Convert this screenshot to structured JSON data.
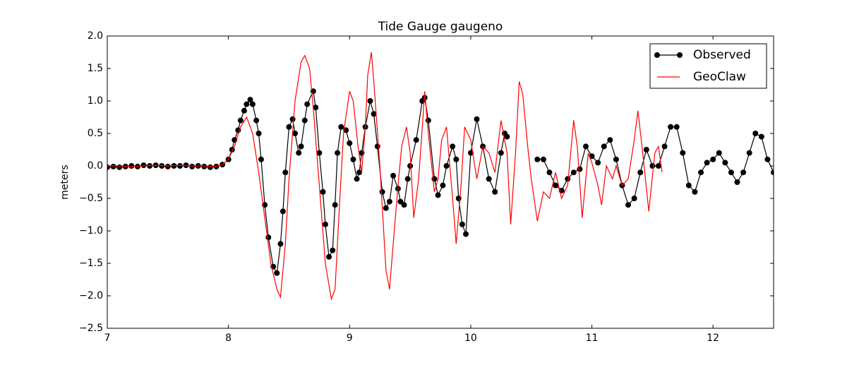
{
  "chart_data": {
    "type": "line",
    "title": "Tide Gauge gaugeno",
    "ylabel": "meters",
    "xlim": [
      7,
      12.5
    ],
    "xticks": [
      7,
      8,
      9,
      10,
      11,
      12
    ],
    "ylim": [
      -2.5,
      2.0
    ],
    "yticks": [
      {
        "value": -2.5,
        "label": "−2.5"
      },
      {
        "value": -2.0,
        "label": "−2.0"
      },
      {
        "value": -1.5,
        "label": "−1.5"
      },
      {
        "value": -1.0,
        "label": "−1.0"
      },
      {
        "value": -0.5,
        "label": "−0.5"
      },
      {
        "value": 0.0,
        "label": "0.0"
      },
      {
        "value": 0.5,
        "label": "0.5"
      },
      {
        "value": 1.0,
        "label": "1.0"
      },
      {
        "value": 1.5,
        "label": "1.5"
      },
      {
        "value": 2.0,
        "label": "2.0"
      }
    ],
    "legend": "upper right",
    "series": [
      {
        "name": "Observed",
        "color": "#000000",
        "markers": true,
        "x": [
          7.0,
          7.05,
          7.1,
          7.15,
          7.2,
          7.25,
          7.3,
          7.35,
          7.4,
          7.45,
          7.5,
          7.55,
          7.6,
          7.65,
          7.7,
          7.75,
          7.8,
          7.85,
          7.9,
          7.95,
          8.0,
          8.03,
          8.05,
          8.08,
          8.1,
          8.13,
          8.15,
          8.18,
          8.2,
          8.23,
          8.25,
          8.27,
          8.3,
          8.33,
          8.37,
          8.4,
          8.43,
          8.45,
          8.47,
          8.5,
          8.53,
          8.55,
          8.58,
          8.6,
          8.63,
          8.65,
          8.7,
          8.72,
          8.75,
          8.78,
          8.8,
          8.83,
          8.86,
          8.88,
          8.9,
          8.93,
          8.97,
          9.0,
          9.03,
          9.06,
          9.08,
          9.1,
          9.13,
          9.17,
          9.2,
          9.23,
          9.27,
          9.3,
          9.33,
          9.36,
          9.4,
          9.42,
          9.45,
          9.48,
          9.5,
          9.55,
          9.6,
          9.62,
          9.65,
          9.7,
          9.73,
          9.77,
          9.8,
          9.85,
          9.88,
          9.9,
          9.93,
          9.96,
          10.0,
          10.05,
          10.1,
          10.15,
          10.2,
          10.25,
          10.28,
          10.3,
          10.4,
          10.55,
          10.6,
          10.65,
          10.7,
          10.75,
          10.8,
          10.85,
          10.9,
          10.95,
          11.0,
          11.05,
          11.1,
          11.15,
          11.2,
          11.25,
          11.3,
          11.35,
          11.4,
          11.45,
          11.5,
          11.55,
          11.6,
          11.65,
          11.7,
          11.75,
          11.8,
          11.85,
          11.9,
          11.95,
          12.0,
          12.05,
          12.1,
          12.15,
          12.2,
          12.25,
          12.3,
          12.35,
          12.4,
          12.45,
          12.5
        ],
        "values": [
          -0.02,
          -0.01,
          -0.02,
          -0.01,
          0.0,
          -0.01,
          0.01,
          0.0,
          0.01,
          0.0,
          -0.01,
          0.0,
          0.0,
          0.01,
          -0.01,
          0.0,
          -0.01,
          -0.02,
          -0.01,
          0.02,
          0.1,
          0.25,
          0.4,
          0.55,
          0.7,
          0.85,
          0.95,
          1.02,
          0.95,
          0.7,
          0.5,
          0.1,
          -0.6,
          -1.1,
          -1.55,
          -1.65,
          -1.2,
          -0.7,
          -0.1,
          0.6,
          0.72,
          0.5,
          0.2,
          0.3,
          0.7,
          0.95,
          1.15,
          0.9,
          0.2,
          -0.4,
          -0.9,
          -1.4,
          -1.3,
          -0.6,
          0.2,
          0.6,
          0.55,
          0.35,
          0.1,
          -0.2,
          -0.1,
          0.2,
          0.6,
          1.0,
          0.8,
          0.3,
          -0.4,
          -0.65,
          -0.55,
          -0.15,
          -0.35,
          -0.55,
          -0.6,
          -0.2,
          0.0,
          0.4,
          1.0,
          1.05,
          0.7,
          -0.2,
          -0.45,
          -0.3,
          0.0,
          0.3,
          0.1,
          -0.5,
          -0.9,
          -1.05,
          0.2,
          0.72,
          0.3,
          -0.2,
          -0.4,
          0.2,
          0.5,
          0.45,
          null,
          0.1,
          0.1,
          -0.1,
          -0.3,
          -0.38,
          -0.2,
          -0.1,
          -0.05,
          0.3,
          0.15,
          0.05,
          0.3,
          0.4,
          0.1,
          -0.3,
          -0.6,
          -0.5,
          -0.1,
          0.25,
          0.0,
          0.0,
          0.3,
          0.6,
          0.6,
          0.2,
          -0.3,
          -0.4,
          -0.1,
          0.05,
          0.1,
          0.2,
          0.05,
          -0.1,
          -0.25,
          -0.1,
          0.2,
          0.5,
          0.45,
          0.1,
          -0.1
        ]
      },
      {
        "name": "GeoClaw",
        "color": "#ff0000",
        "markers": false,
        "x": [
          7.0,
          7.1,
          7.2,
          7.3,
          7.4,
          7.5,
          7.6,
          7.7,
          7.8,
          7.9,
          7.95,
          8.0,
          8.05,
          8.1,
          8.15,
          8.2,
          8.25,
          8.3,
          8.35,
          8.4,
          8.43,
          8.47,
          8.5,
          8.55,
          8.6,
          8.63,
          8.67,
          8.7,
          8.75,
          8.8,
          8.85,
          8.88,
          8.92,
          8.95,
          9.0,
          9.03,
          9.07,
          9.1,
          9.13,
          9.15,
          9.18,
          9.2,
          9.25,
          9.3,
          9.33,
          9.36,
          9.4,
          9.43,
          9.47,
          9.5,
          9.53,
          9.57,
          9.6,
          9.62,
          9.65,
          9.7,
          9.73,
          9.76,
          9.8,
          9.85,
          9.88,
          9.92,
          9.95,
          10.0,
          10.05,
          10.1,
          10.15,
          10.2,
          10.25,
          10.3,
          10.33,
          10.37,
          10.4,
          10.43,
          10.47,
          10.5,
          10.55,
          10.6,
          10.65,
          10.7,
          10.75,
          10.8,
          10.85,
          10.88,
          10.92,
          10.97,
          11.0,
          11.05,
          11.08,
          11.12,
          11.17,
          11.2,
          11.25,
          11.3,
          11.35,
          11.38,
          11.42,
          11.47,
          11.52,
          11.55,
          11.58
        ],
        "values": [
          0.0,
          0.0,
          -0.01,
          0.0,
          0.01,
          0.0,
          0.01,
          0.0,
          0.0,
          -0.01,
          0.02,
          0.1,
          0.3,
          0.6,
          0.75,
          0.5,
          -0.1,
          -0.8,
          -1.5,
          -1.9,
          -2.02,
          -1.2,
          -0.2,
          1.0,
          1.6,
          1.7,
          1.5,
          0.9,
          -0.3,
          -1.5,
          -2.05,
          -1.9,
          -0.5,
          0.5,
          1.15,
          1.0,
          0.3,
          -0.1,
          0.6,
          1.4,
          1.75,
          1.3,
          0.0,
          -1.6,
          -1.9,
          -1.2,
          -0.3,
          0.3,
          0.6,
          0.2,
          -0.8,
          -0.2,
          0.6,
          1.15,
          0.5,
          -0.4,
          -0.2,
          0.4,
          0.6,
          -0.5,
          -1.2,
          -0.3,
          0.6,
          0.4,
          -0.2,
          0.3,
          0.2,
          -0.1,
          0.7,
          0.2,
          -0.9,
          0.2,
          1.3,
          1.1,
          0.3,
          -0.2,
          -0.85,
          -0.4,
          -0.5,
          -0.1,
          -0.5,
          -0.3,
          0.7,
          0.3,
          -0.8,
          0.2,
          0.05,
          -0.3,
          -0.6,
          0.0,
          -0.2,
          0.0,
          -0.3,
          -0.2,
          0.4,
          0.85,
          0.2,
          -0.7,
          0.2,
          0.3,
          -0.1
        ]
      }
    ]
  }
}
